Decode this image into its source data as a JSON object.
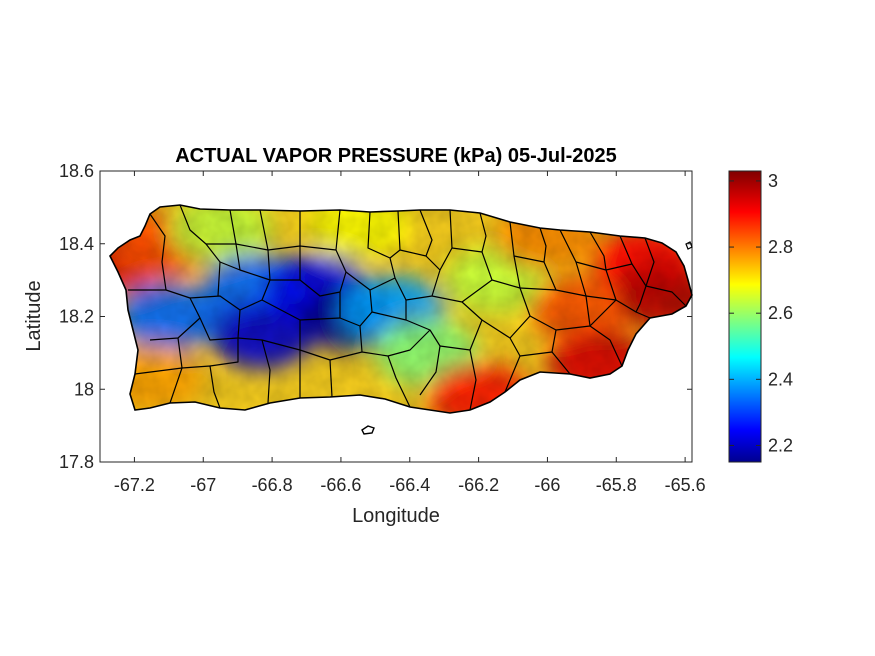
{
  "chart_data": {
    "type": "heatmap",
    "title": "ACTUAL VAPOR PRESSURE (kPa) 05-Jul-2025",
    "xlabel": "Longitude",
    "ylabel": "Latitude",
    "xlim": [
      -67.3,
      -65.58
    ],
    "ylim": [
      17.8,
      18.6
    ],
    "x_ticks": [
      -67.2,
      -67,
      -66.8,
      -66.6,
      -66.4,
      -66.2,
      -66,
      -65.8,
      -65.6
    ],
    "x_tick_labels": [
      "-67.2",
      "-67",
      "-66.8",
      "-66.6",
      "-66.4",
      "-66.2",
      "-66",
      "-65.8",
      "-65.6"
    ],
    "y_ticks": [
      17.8,
      18,
      18.2,
      18.4,
      18.6
    ],
    "y_tick_labels": [
      "17.8",
      "18",
      "18.2",
      "18.4",
      "18.6"
    ],
    "colorbar": {
      "colormap": "jet",
      "clim": [
        2.15,
        3.03
      ],
      "ticks": [
        2.2,
        2.4,
        2.6,
        2.8,
        3
      ],
      "tick_labels": [
        "2.2",
        "2.4",
        "2.6",
        "2.8",
        "3"
      ]
    },
    "field_samples": [
      {
        "lon": -67.25,
        "lat": 18.36,
        "value": 2.95
      },
      {
        "lon": -67.12,
        "lat": 18.4,
        "value": 2.85
      },
      {
        "lon": -67.1,
        "lat": 18.2,
        "value": 2.35
      },
      {
        "lon": -67.15,
        "lat": 18.03,
        "value": 2.78
      },
      {
        "lon": -66.95,
        "lat": 18.44,
        "value": 2.65
      },
      {
        "lon": -66.85,
        "lat": 18.28,
        "value": 2.35
      },
      {
        "lon": -66.83,
        "lat": 18.15,
        "value": 2.22
      },
      {
        "lon": -66.67,
        "lat": 18.28,
        "value": 2.25
      },
      {
        "lon": -66.58,
        "lat": 18.2,
        "value": 2.17
      },
      {
        "lon": -66.45,
        "lat": 18.22,
        "value": 2.4
      },
      {
        "lon": -66.55,
        "lat": 18.45,
        "value": 2.7
      },
      {
        "lon": -66.35,
        "lat": 18.1,
        "value": 2.6
      },
      {
        "lon": -66.2,
        "lat": 17.98,
        "value": 2.9
      },
      {
        "lon": -66.15,
        "lat": 18.3,
        "value": 2.65
      },
      {
        "lon": -66.0,
        "lat": 18.42,
        "value": 2.8
      },
      {
        "lon": -65.9,
        "lat": 18.22,
        "value": 2.85
      },
      {
        "lon": -65.85,
        "lat": 18.07,
        "value": 2.95
      },
      {
        "lon": -65.72,
        "lat": 18.35,
        "value": 2.92
      },
      {
        "lon": -65.65,
        "lat": 18.25,
        "value": 2.98
      }
    ]
  }
}
